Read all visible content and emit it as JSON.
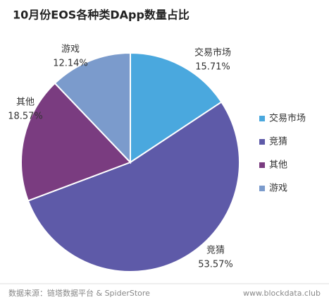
{
  "chart_data": {
    "type": "pie",
    "title": "10月份EOS各种类DApp数量占比",
    "categories": [
      "交易市场",
      "竞猜",
      "其他",
      "游戏"
    ],
    "values": [
      15.71,
      53.57,
      18.57,
      12.14
    ],
    "value_labels": [
      "15.71%",
      "53.57%",
      "18.57%",
      "12.14%"
    ],
    "colors": [
      "#4aa8de",
      "#5e5aa8",
      "#7a3c80",
      "#7b9bcc"
    ],
    "legend": "right",
    "source": "数据来源：链塔数据平台 & SpiderStore",
    "website": "www.blockdata.club"
  }
}
